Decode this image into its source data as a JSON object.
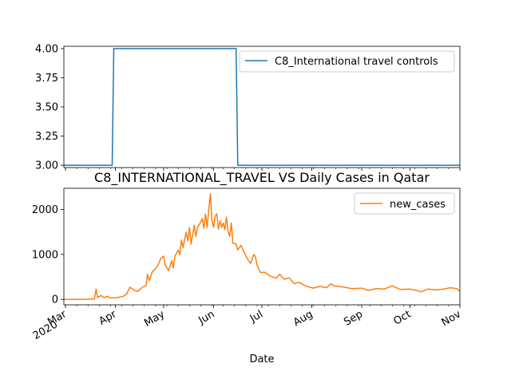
{
  "chart_data": [
    {
      "type": "line",
      "title": "",
      "xlabel": "",
      "ylabel": "",
      "xlim": [
        "2020-02-29",
        "2020-11-01"
      ],
      "ylim": [
        2.98,
        4.02
      ],
      "yticks": [
        "3.00",
        "3.25",
        "3.50",
        "3.75",
        "4.00"
      ],
      "grid": false,
      "legend": "top-right",
      "color": "#1f77b4",
      "series": [
        {
          "name": "C8_International travel controls",
          "points": [
            [
              "2020-02-29",
              3
            ],
            [
              "2020-03-30",
              3
            ],
            [
              "2020-03-31",
              4
            ],
            [
              "2020-06-15",
              4
            ],
            [
              "2020-06-16",
              3
            ],
            [
              "2020-11-01",
              3
            ]
          ]
        }
      ]
    },
    {
      "type": "line",
      "title": "C8_INTERNATIONAL_TRAVEL VS Daily Cases in Qatar",
      "xlabel": "Date",
      "ylabel": "",
      "xlim": [
        "2020-02-29",
        "2020-11-01"
      ],
      "ylim": [
        -120,
        2470
      ],
      "yticks": [
        "0",
        "1000",
        "2000"
      ],
      "grid": false,
      "legend": "top-right",
      "color": "#ff7f0e",
      "xticks": [
        "Mar\n2020",
        "Apr",
        "May",
        "Jun",
        "Jul",
        "Aug",
        "Sep",
        "Oct",
        "Nov"
      ],
      "series": [
        {
          "name": "new_cases",
          "points": [
            [
              "2020-02-29",
              0
            ],
            [
              "2020-03-08",
              0
            ],
            [
              "2020-03-14",
              5
            ],
            [
              "2020-03-19",
              12
            ],
            [
              "2020-03-20",
              230
            ],
            [
              "2020-03-21",
              40
            ],
            [
              "2020-03-23",
              90
            ],
            [
              "2020-03-25",
              40
            ],
            [
              "2020-03-27",
              70
            ],
            [
              "2020-03-29",
              30
            ],
            [
              "2020-04-02",
              40
            ],
            [
              "2020-04-06",
              70
            ],
            [
              "2020-04-08",
              120
            ],
            [
              "2020-04-10",
              270
            ],
            [
              "2020-04-13",
              200
            ],
            [
              "2020-04-15",
              180
            ],
            [
              "2020-04-18",
              280
            ],
            [
              "2020-04-20",
              300
            ],
            [
              "2020-04-21",
              560
            ],
            [
              "2020-04-22",
              420
            ],
            [
              "2020-04-24",
              620
            ],
            [
              "2020-04-26",
              680
            ],
            [
              "2020-04-28",
              800
            ],
            [
              "2020-04-29",
              900
            ],
            [
              "2020-05-01",
              960
            ],
            [
              "2020-05-02",
              760
            ],
            [
              "2020-05-04",
              640
            ],
            [
              "2020-05-06",
              860
            ],
            [
              "2020-05-07",
              700
            ],
            [
              "2020-05-08",
              960
            ],
            [
              "2020-05-10",
              1100
            ],
            [
              "2020-05-11",
              1000
            ],
            [
              "2020-05-12",
              1320
            ],
            [
              "2020-05-13",
              1150
            ],
            [
              "2020-05-15",
              1500
            ],
            [
              "2020-05-16",
              1300
            ],
            [
              "2020-05-17",
              1600
            ],
            [
              "2020-05-18",
              1230
            ],
            [
              "2020-05-20",
              1650
            ],
            [
              "2020-05-21",
              1400
            ],
            [
              "2020-05-22",
              1600
            ],
            [
              "2020-05-24",
              1720
            ],
            [
              "2020-05-25",
              1800
            ],
            [
              "2020-05-26",
              1580
            ],
            [
              "2020-05-27",
              1900
            ],
            [
              "2020-05-28",
              1600
            ],
            [
              "2020-05-29",
              2000
            ],
            [
              "2020-05-30",
              2350
            ],
            [
              "2020-05-31",
              1750
            ],
            [
              "2020-06-01",
              1600
            ],
            [
              "2020-06-02",
              1850
            ],
            [
              "2020-06-03",
              1900
            ],
            [
              "2020-06-04",
              1560
            ],
            [
              "2020-06-05",
              1750
            ],
            [
              "2020-06-06",
              1600
            ],
            [
              "2020-06-07",
              1700
            ],
            [
              "2020-06-08",
              1550
            ],
            [
              "2020-06-09",
              1830
            ],
            [
              "2020-06-10",
              1500
            ],
            [
              "2020-06-11",
              1400
            ],
            [
              "2020-06-12",
              1700
            ],
            [
              "2020-06-13",
              1250
            ],
            [
              "2020-06-15",
              1230
            ],
            [
              "2020-06-16",
              1100
            ],
            [
              "2020-06-18",
              1200
            ],
            [
              "2020-06-20",
              1050
            ],
            [
              "2020-06-22",
              900
            ],
            [
              "2020-06-24",
              800
            ],
            [
              "2020-06-26",
              1000
            ],
            [
              "2020-06-27",
              950
            ],
            [
              "2020-06-28",
              760
            ],
            [
              "2020-06-30",
              600
            ],
            [
              "2020-07-03",
              600
            ],
            [
              "2020-07-06",
              520
            ],
            [
              "2020-07-10",
              470
            ],
            [
              "2020-07-12",
              560
            ],
            [
              "2020-07-15",
              450
            ],
            [
              "2020-07-18",
              480
            ],
            [
              "2020-07-21",
              350
            ],
            [
              "2020-07-24",
              380
            ],
            [
              "2020-07-28",
              300
            ],
            [
              "2020-08-02",
              250
            ],
            [
              "2020-08-06",
              290
            ],
            [
              "2020-08-10",
              260
            ],
            [
              "2020-08-13",
              350
            ],
            [
              "2020-08-15",
              300
            ],
            [
              "2020-08-20",
              280
            ],
            [
              "2020-08-26",
              240
            ],
            [
              "2020-09-01",
              250
            ],
            [
              "2020-09-05",
              200
            ],
            [
              "2020-09-10",
              240
            ],
            [
              "2020-09-15",
              230
            ],
            [
              "2020-09-20",
              300
            ],
            [
              "2020-09-25",
              220
            ],
            [
              "2020-10-01",
              230
            ],
            [
              "2020-10-05",
              200
            ],
            [
              "2020-10-08",
              170
            ],
            [
              "2020-10-12",
              230
            ],
            [
              "2020-10-17",
              210
            ],
            [
              "2020-10-22",
              230
            ],
            [
              "2020-10-26",
              260
            ],
            [
              "2020-10-30",
              240
            ],
            [
              "2020-11-01",
              180
            ]
          ]
        }
      ]
    }
  ]
}
